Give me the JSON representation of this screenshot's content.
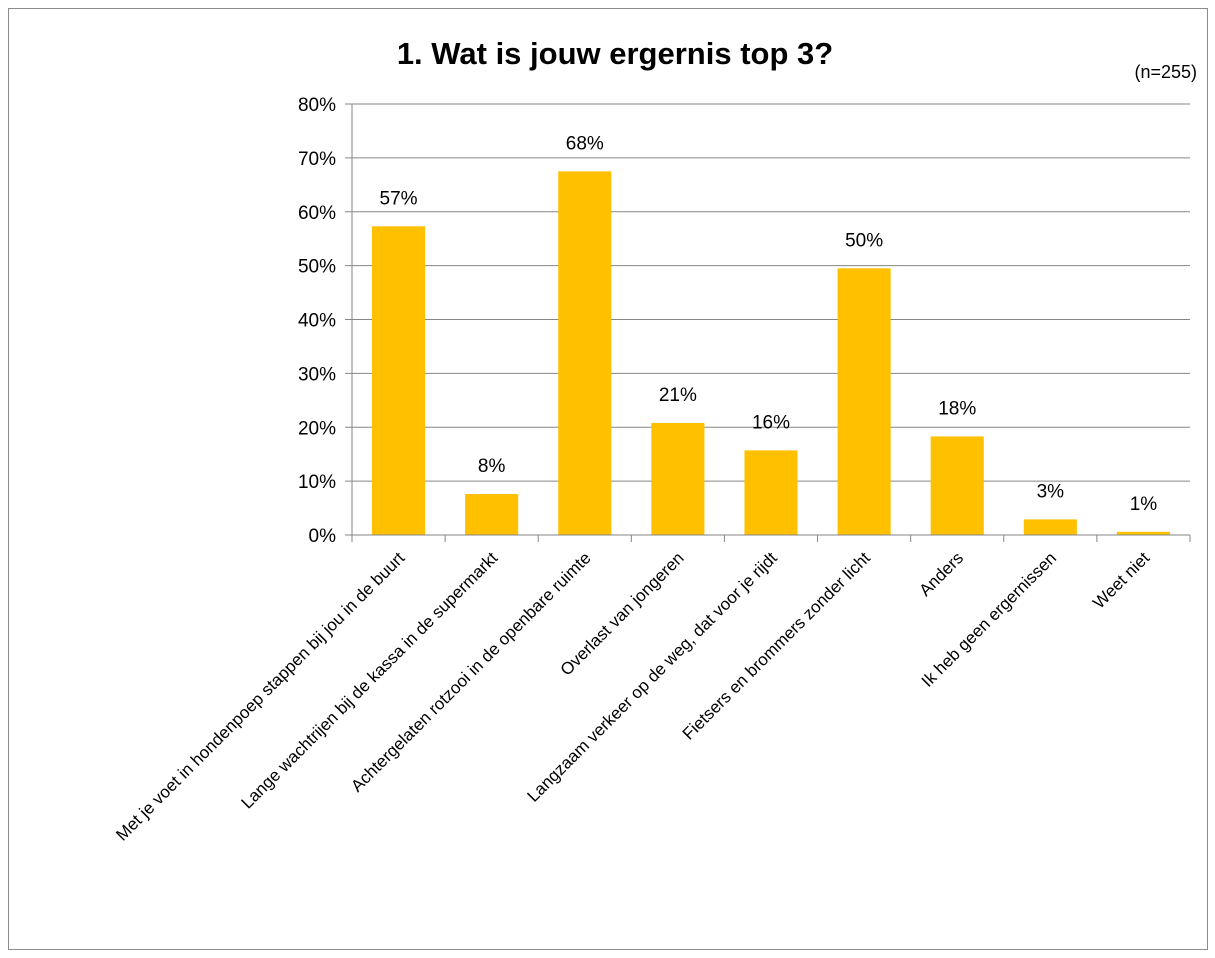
{
  "chart_data": {
    "type": "bar",
    "title": "1. Wat is jouw ergernis top 3?",
    "note": "(n=255)",
    "xlabel": "",
    "ylabel": "",
    "ylim": [
      0,
      80
    ],
    "y_ticks": [
      "0%",
      "10%",
      "20%",
      "30%",
      "40%",
      "50%",
      "60%",
      "70%",
      "80%"
    ],
    "y_tick_values": [
      0,
      10,
      20,
      30,
      40,
      50,
      60,
      70,
      80
    ],
    "grid": true,
    "legend": "none",
    "categories": [
      "Met je voet in hondenpoep stappen bij jou in de buurt",
      "Lange wachtrijen bij de kassa in de supermarkt",
      "Achtergelaten rotzooi in de openbare ruimte",
      "Overlast van jongeren",
      "Langzaam verkeer op de weg, dat voor je rijdt",
      "Fietsers en brommers zonder licht",
      "Anders",
      "Ik heb geen ergernissen",
      "Weet niet"
    ],
    "values": [
      57.3,
      7.6,
      67.5,
      20.8,
      15.7,
      49.5,
      18.3,
      2.9,
      0.6
    ],
    "data_labels": [
      "57%",
      "8%",
      "68%",
      "21%",
      "16%",
      "50%",
      "18%",
      "3%",
      "1%"
    ],
    "colors": {
      "bar": "#FFC000",
      "grid": "#868686",
      "axis": "#868686"
    }
  }
}
